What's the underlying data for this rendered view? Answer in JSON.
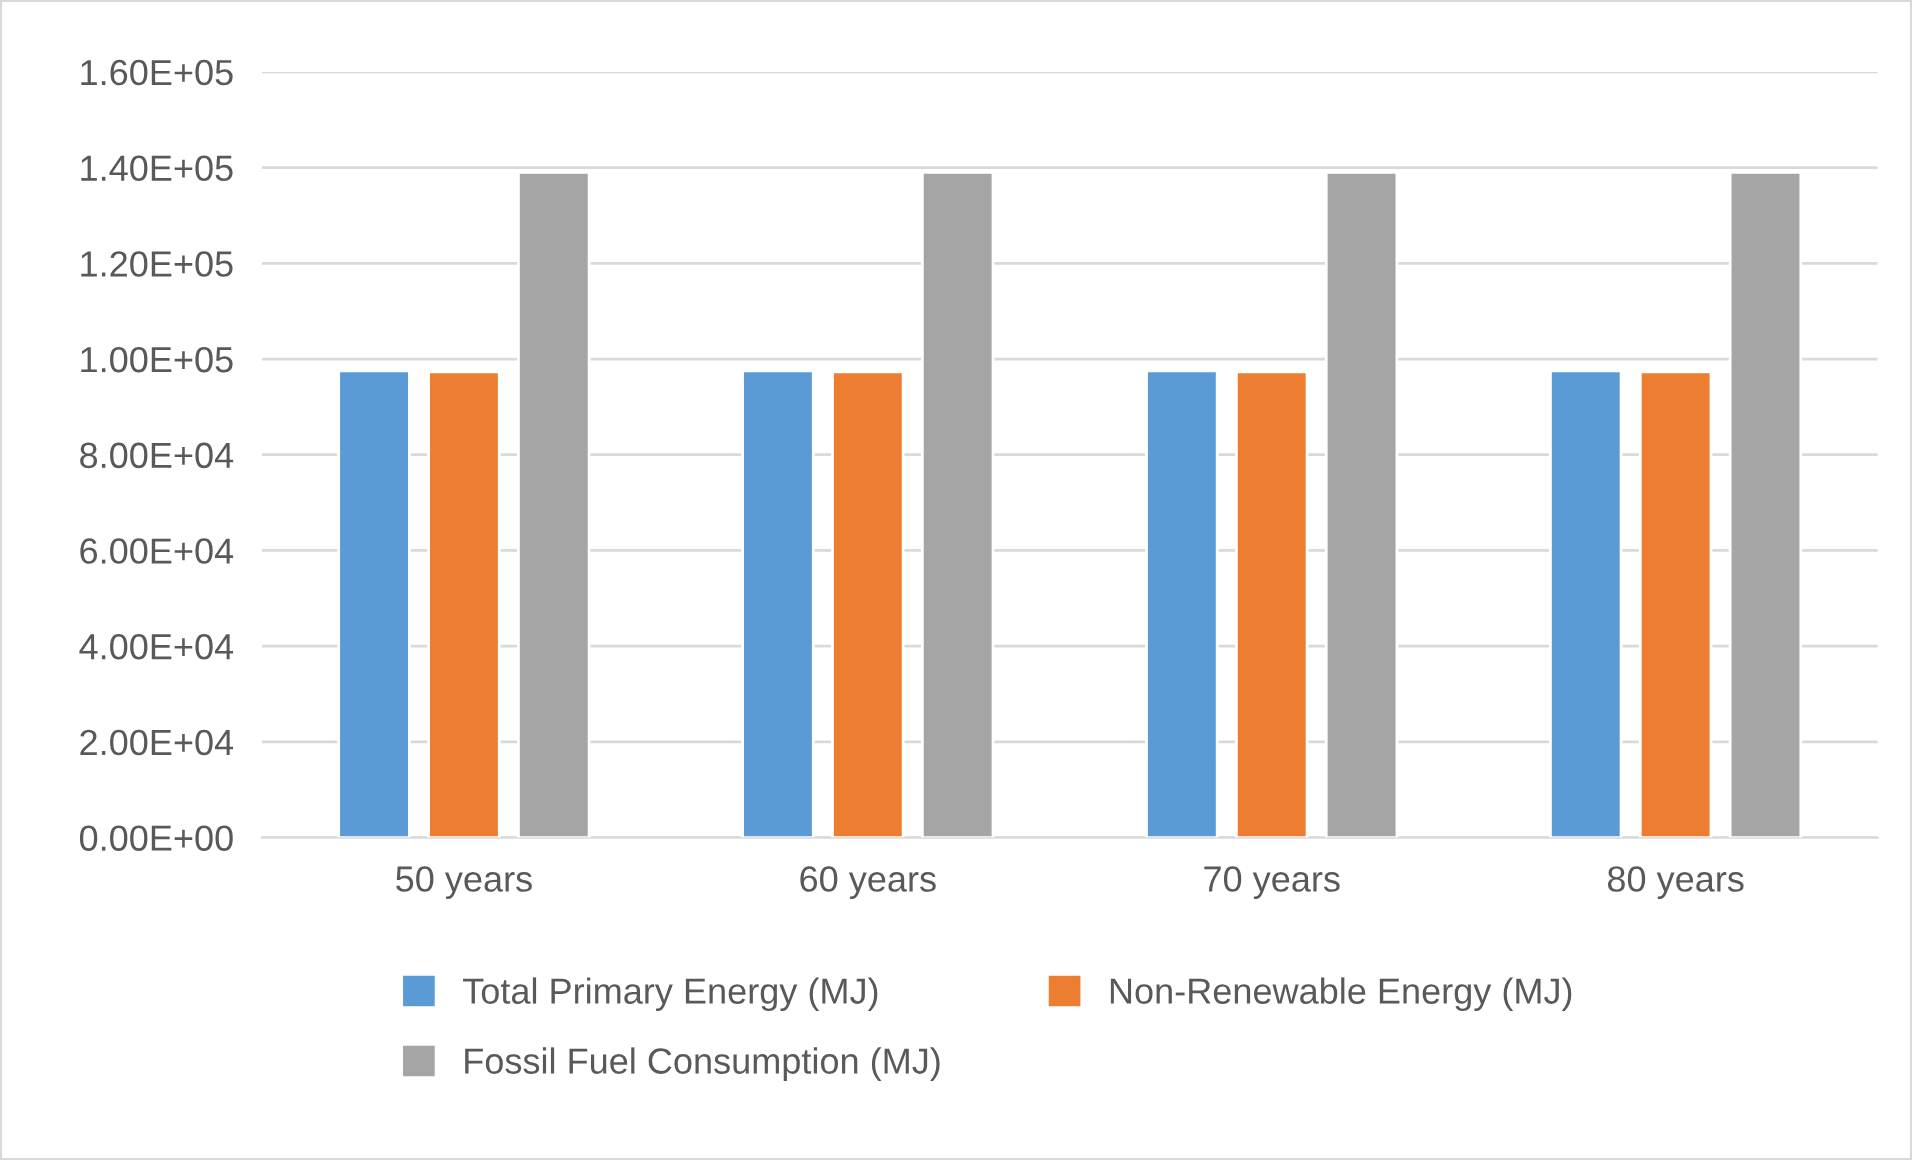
{
  "chart_data": {
    "type": "bar",
    "categories": [
      "50 years",
      "60 years",
      "70 years",
      "80 years"
    ],
    "series": [
      {
        "name": "Total Primary Energy (MJ)",
        "color": "#5b9bd5",
        "values": [
          97500,
          97500,
          97500,
          97500
        ]
      },
      {
        "name": "Non-Renewable Energy (MJ)",
        "color": "#ed7d31",
        "values": [
          97300,
          97300,
          97300,
          97300
        ]
      },
      {
        "name": "Fossil Fuel Consumption (MJ)",
        "color": "#a5a5a5",
        "values": [
          139000,
          139000,
          139000,
          139000
        ]
      }
    ],
    "ylim": [
      0,
      160000
    ],
    "yticks": [
      {
        "value": 0,
        "label": "0.00E+00"
      },
      {
        "value": 20000,
        "label": "2.00E+04"
      },
      {
        "value": 40000,
        "label": "4.00E+04"
      },
      {
        "value": 60000,
        "label": "6.00E+04"
      },
      {
        "value": 80000,
        "label": "8.00E+04"
      },
      {
        "value": 100000,
        "label": "1.00E+05"
      },
      {
        "value": 120000,
        "label": "1.20E+05"
      },
      {
        "value": 140000,
        "label": "1.40E+05"
      },
      {
        "value": 160000,
        "label": "1.60E+05"
      }
    ],
    "grid": "y",
    "legend": "bottom"
  }
}
